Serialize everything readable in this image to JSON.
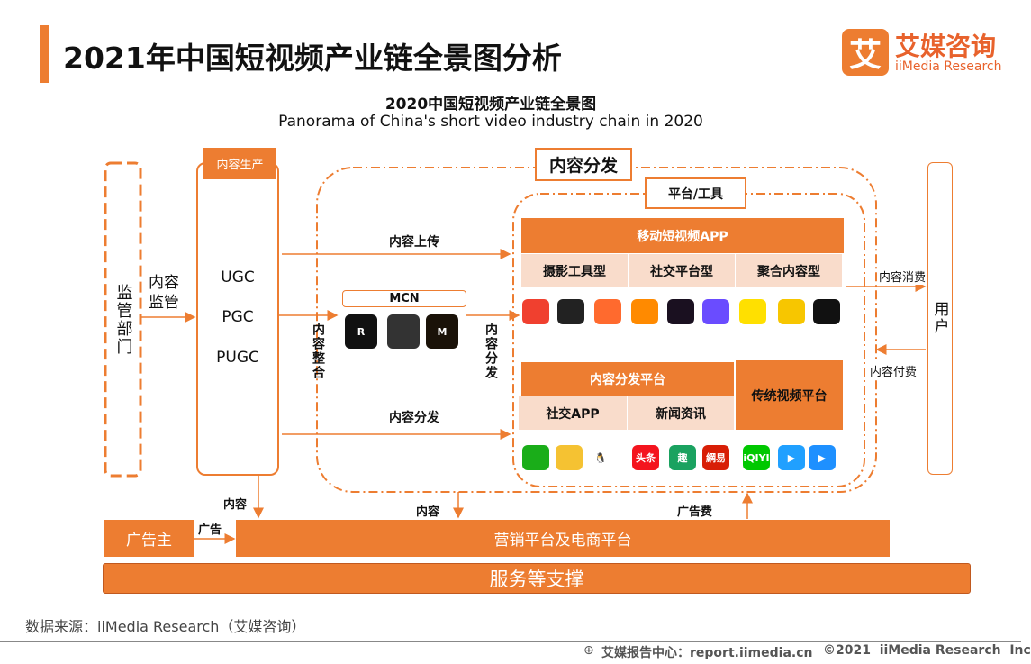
{
  "header": {
    "title": "2021年中国短视频产业链全景图分析",
    "logo_cn": "艾媒咨询",
    "logo_en": "iiMedia Research",
    "logo_mark": "艾"
  },
  "diagram": {
    "title_cn": "2020中国短视频产业链全景图",
    "title_en": "Panorama of China's short video industry chain in 2020",
    "regulator": "监管部门",
    "regulate_label": "内容监管",
    "production": {
      "label": "内容生产",
      "items": [
        "UGC",
        "PGC",
        "PUGC"
      ]
    },
    "distribution": {
      "label": "内容分发",
      "upload": "内容上传",
      "integrate": "内容整合",
      "distribute_v": "内容分发",
      "distribute": "内容分发",
      "mcn": "MCN"
    },
    "platform": {
      "label": "平台/工具",
      "mobile_app": "移动短视频APP",
      "types": [
        "摄影工具型",
        "社交平台型",
        "聚合内容型"
      ],
      "dist_platform": "内容分发平台",
      "dist_types": [
        "社交APP",
        "新闻资讯"
      ],
      "traditional": "传统视频平台"
    },
    "user": {
      "label": "用户",
      "consume": "内容消费",
      "pay": "内容付费"
    },
    "bottom": {
      "content1": "内容",
      "content2": "内容",
      "ad_fee": "广告费",
      "ad": "广告",
      "advertiser": "广告主",
      "marketing": "营销平台及电商平台",
      "support": "服务等支撑"
    },
    "app_icons": [
      {
        "name": "monkey-app-icon",
        "color": "#f0402f"
      },
      {
        "name": "stripes-app-icon",
        "color": "#222222"
      },
      {
        "name": "video-camera-app-icon",
        "color": "#ff6a2e"
      },
      {
        "name": "kuaishou-icon",
        "color": "#ff8a00"
      },
      {
        "name": "douyin-b-icon",
        "color": "#1a1020"
      },
      {
        "name": "play-gradient-icon",
        "color": "#6a4cff"
      },
      {
        "name": "pear-video-icon",
        "color": "#ffe000"
      },
      {
        "name": "camera-lens-icon",
        "color": "#f7c600"
      },
      {
        "name": "watermelon-video-icon",
        "color": "#111111"
      }
    ],
    "dist_icons": [
      {
        "name": "wechat-icon",
        "color": "#1aad19",
        "text": ""
      },
      {
        "name": "weibo-icon",
        "color": "#f5c232",
        "text": ""
      },
      {
        "name": "qq-icon",
        "color": "#ffffff",
        "text": ""
      },
      {
        "name": "toutiao-icon",
        "color": "#f4141e",
        "text": "头条"
      },
      {
        "name": "qutoutiao-icon",
        "color": "#1aa260",
        "text": "趣"
      },
      {
        "name": "netease-news-icon",
        "color": "#d81e06",
        "text": "網易"
      }
    ],
    "video_icons": [
      {
        "name": "iqiyi-icon",
        "color": "#00c800",
        "text": "iQIYI"
      },
      {
        "name": "tencent-video-icon",
        "color": "#20a0ff",
        "text": "▶"
      },
      {
        "name": "youku-icon",
        "color": "#1e90ff",
        "text": "▶"
      }
    ],
    "mcn_icons": [
      {
        "name": "mcn-r-logo-icon",
        "color": "#111111",
        "text": "R"
      },
      {
        "name": "mcn-figure-logo-icon",
        "color": "#333333",
        "text": ""
      },
      {
        "name": "mcn-m-logo-icon",
        "color": "#1a1208",
        "text": "M"
      }
    ]
  },
  "footer": {
    "source": "数据来源：iiMedia Research（艾媒咨询）",
    "site": "艾媒报告中心：report.iimedia.cn",
    "copyright": "©2021  iiMedia Research  Inc"
  },
  "colors": {
    "accent": "#ed7d31",
    "peach": "#f9dccb"
  }
}
